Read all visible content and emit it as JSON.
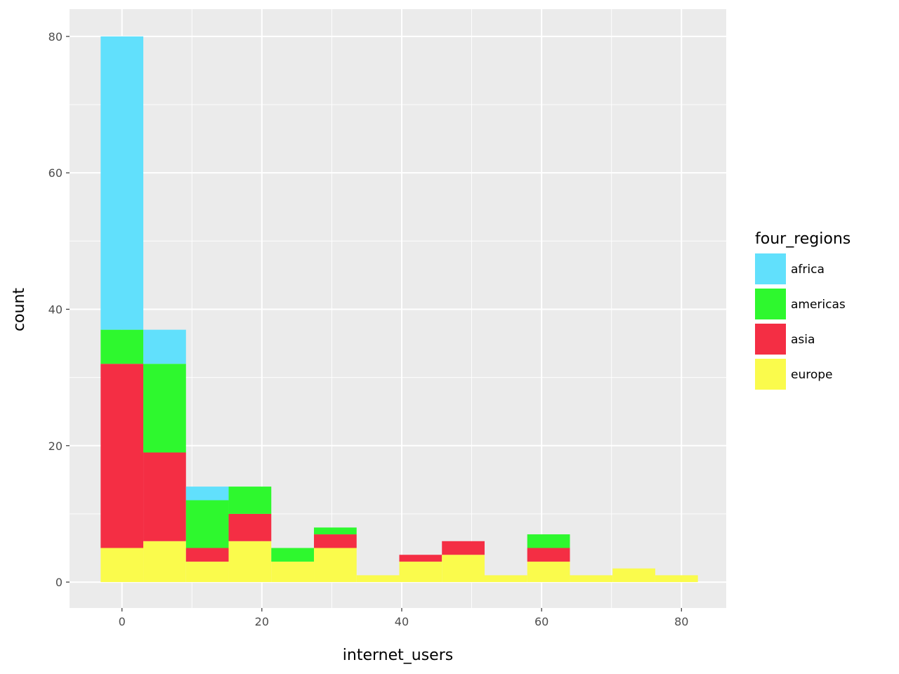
{
  "chart_data": {
    "type": "bar",
    "stacked": true,
    "histogram": true,
    "title": "",
    "xlabel": "internet_users",
    "ylabel": "count",
    "xlim": [
      -7.5,
      86.4
    ],
    "ylim": [
      -3.8,
      84
    ],
    "x_ticks": [
      0,
      20,
      40,
      60,
      80
    ],
    "y_ticks": [
      0,
      20,
      40,
      60,
      80
    ],
    "grid": true,
    "legend": {
      "title": "four_regions",
      "placement": "right",
      "entries": [
        "africa",
        "americas",
        "asia",
        "europe"
      ]
    },
    "bins": [
      {
        "x0": -3.05,
        "x1": 3.05
      },
      {
        "x0": 3.05,
        "x1": 9.15
      },
      {
        "x0": 9.15,
        "x1": 15.25
      },
      {
        "x0": 15.25,
        "x1": 21.35
      },
      {
        "x0": 21.35,
        "x1": 27.45
      },
      {
        "x0": 27.45,
        "x1": 33.55
      },
      {
        "x0": 33.55,
        "x1": 39.65
      },
      {
        "x0": 39.65,
        "x1": 45.75
      },
      {
        "x0": 45.75,
        "x1": 51.85
      },
      {
        "x0": 51.85,
        "x1": 57.95
      },
      {
        "x0": 57.95,
        "x1": 64.05
      },
      {
        "x0": 64.05,
        "x1": 70.15
      },
      {
        "x0": 70.15,
        "x1": 76.25
      },
      {
        "x0": 76.25,
        "x1": 82.35
      }
    ],
    "series": [
      {
        "name": "africa",
        "color": "#61E0FC",
        "values": [
          43,
          5,
          2,
          0,
          0,
          0,
          0,
          0,
          0,
          0,
          0,
          0,
          0,
          0
        ]
      },
      {
        "name": "americas",
        "color": "#2EF82E",
        "values": [
          5,
          13,
          7,
          4,
          2,
          1,
          0,
          0,
          0,
          0,
          2,
          0,
          0,
          0
        ]
      },
      {
        "name": "asia",
        "color": "#F42E44",
        "values": [
          27,
          13,
          2,
          4,
          0,
          2,
          0,
          1,
          2,
          0,
          2,
          0,
          0,
          0
        ]
      },
      {
        "name": "europe",
        "color": "#FAFB4C",
        "values": [
          5,
          6,
          3,
          6,
          3,
          5,
          1,
          3,
          4,
          1,
          3,
          1,
          2,
          1
        ]
      }
    ]
  }
}
